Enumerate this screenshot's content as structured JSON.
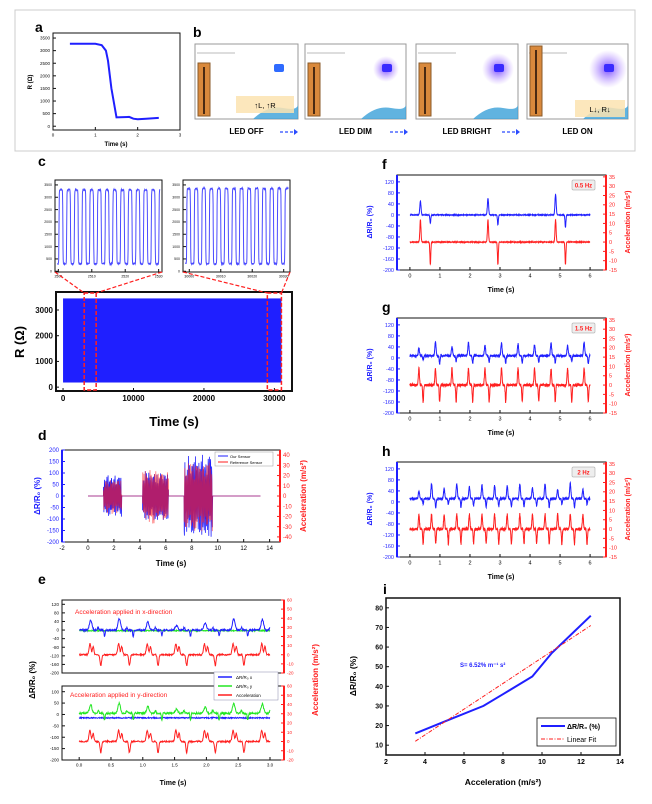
{
  "panel_labels": {
    "a": "a",
    "b": "b",
    "c": "c",
    "d": "d",
    "e": "e",
    "f": "f",
    "g": "g",
    "h": "h",
    "i": "i"
  },
  "panel_b": {
    "stages": [
      "LED OFF",
      "LED DIM",
      "LED BRIGHT",
      "LED ON"
    ],
    "annotation_off": "↑L, ↑R",
    "annotation_on": "L↓, R↓",
    "arrow_color": "#2a4bff"
  },
  "colors": {
    "blue": "#1f1fff",
    "red": "#ff1f1f",
    "green": "#22e622"
  },
  "chart_data": [
    {
      "panel": "a",
      "type": "line",
      "xlabel": "Time (s)",
      "ylabel": "R (Ω)",
      "xlim": [
        0,
        3
      ],
      "ylim": [
        -150,
        3700
      ],
      "xticks": [
        0,
        1,
        2,
        3
      ],
      "yticks": [
        0,
        500,
        1000,
        1500,
        2000,
        2500,
        3000,
        3500
      ],
      "x": [
        0.4,
        1.0,
        1.15,
        1.25,
        1.3,
        1.38,
        1.5,
        1.8,
        1.9,
        2.0,
        2.2,
        2.5
      ],
      "y": [
        3270,
        3270,
        3220,
        3000,
        2600,
        1500,
        350,
        370,
        300,
        280,
        300,
        330
      ]
    },
    {
      "panel": "c-inset-1",
      "type": "line",
      "xlim": [
        2499,
        2531
      ],
      "ylim": [
        -30,
        3700
      ],
      "xticks": [
        2500,
        2510,
        2520,
        2530
      ],
      "yticks": [
        0,
        500,
        1000,
        1500,
        2000,
        2500,
        3000,
        3500
      ],
      "high": 3300,
      "low": 300,
      "cycle_period_s": 2.3
    },
    {
      "panel": "c-inset-2",
      "type": "line",
      "xlim": [
        29998,
        30032
      ],
      "ylim": [
        -30,
        3700
      ],
      "xticks": [
        30000,
        30010,
        30020,
        30030
      ],
      "yticks": [
        0,
        500,
        1000,
        1500,
        2000,
        2500,
        3000,
        3500
      ],
      "high": 3350,
      "low": 300,
      "cycle_period_s": 2.4
    },
    {
      "panel": "c",
      "type": "area",
      "xlabel": "Time (s)",
      "ylabel": "R (Ω)",
      "xlim": [
        -1000,
        32500
      ],
      "ylim": [
        -150,
        3700
      ],
      "xticks": [
        0,
        10000,
        20000,
        30000
      ],
      "yticks": [
        0,
        1000,
        2000,
        3000
      ],
      "x_range": [
        0,
        31000
      ],
      "band": [
        180,
        3450
      ],
      "zoom_regions": [
        [
          3000,
          4700
        ],
        [
          29000,
          31000
        ]
      ]
    },
    {
      "panel": "d",
      "type": "line",
      "xlabel": "Time (s)",
      "ylabel": "ΔR/R₀ (%)",
      "y2label": "Acceleration (m/s²)",
      "xlim": [
        -2,
        14.8
      ],
      "ylim": [
        -200,
        200
      ],
      "y2lim": [
        -45,
        45
      ],
      "xticks": [
        -2,
        0,
        2,
        4,
        6,
        8,
        10,
        12,
        14
      ],
      "yticks": [
        -200,
        -150,
        -100,
        -50,
        0,
        50,
        100,
        150,
        200
      ],
      "y2ticks": [
        -40,
        -30,
        -20,
        -10,
        0,
        10,
        20,
        30,
        40
      ],
      "legend": [
        "Our Sensor",
        "Reference Sensor"
      ],
      "legend_position": "top-right",
      "baseline_range": [
        0,
        13.3
      ],
      "bursts": [
        {
          "t": [
            1.2,
            2.6
          ],
          "amp": 95,
          "acc_amp": 18
        },
        {
          "t": [
            4.2,
            6.2
          ],
          "amp": 110,
          "acc_amp": 27
        },
        {
          "t": [
            7.4,
            9.6
          ],
          "amp": 180,
          "acc_amp": 35
        }
      ]
    },
    {
      "panel": "e",
      "type": "line",
      "xlabel": "Time (s)",
      "ylabel": "ΔR/R₀ (%)",
      "y2label": "Acceleration (m/s²)",
      "xlim": [
        -0.27,
        3.22
      ],
      "xticks": [
        "0.0",
        "0.5",
        "1.0",
        "1.5",
        "2.0",
        "2.5",
        "3.0"
      ],
      "legend": [
        "ΔR/R₀ x",
        "ΔR/R₀ y",
        "Acceleration"
      ],
      "subplots": [
        {
          "title": "Acceleration applied in x-direction",
          "ylim": [
            -200,
            140
          ],
          "yticks": [
            120,
            80,
            40,
            0,
            -40,
            -80,
            -120,
            -160,
            -200
          ],
          "y2lim": [
            -20,
            60
          ],
          "y2ticks": [
            60,
            50,
            40,
            30,
            20,
            10,
            0,
            -10,
            -20
          ],
          "active": "x",
          "pulse_period_s": 0.45,
          "peak": 55
        },
        {
          "title": "Acceleration applied in y-direction",
          "ylim": [
            -200,
            125
          ],
          "yticks": [
            100,
            50,
            0,
            -50,
            -100,
            -150,
            -200
          ],
          "y2lim": [
            -20,
            60
          ],
          "y2ticks": [
            60,
            50,
            40,
            30,
            20,
            10,
            0,
            -10,
            -20
          ],
          "active": "y",
          "pulse_period_s": 0.45,
          "peak": 45
        }
      ]
    },
    {
      "panel": "f",
      "type": "line",
      "badge": "0.5 Hz",
      "xlabel": "Time (s)",
      "ylabel": "ΔR/R₀ (%)",
      "y2label": "Acceleration (m/s²)",
      "xlim": [
        -0.43,
        6.53
      ],
      "ylim": [
        -200,
        145
      ],
      "y2lim": [
        -15,
        36
      ],
      "xticks": [
        0,
        1,
        2,
        3,
        4,
        5,
        6
      ],
      "yticks": [
        120,
        80,
        40,
        0,
        -40,
        -80,
        -120,
        -160,
        -200
      ],
      "y2ticks": [
        35,
        30,
        25,
        20,
        15,
        10,
        5,
        0,
        -5,
        -10,
        -15
      ],
      "pulse_times_s": [
        0.35,
        2.6,
        4.85
      ],
      "peaks": [
        50,
        60,
        75
      ],
      "acc_peak": 12,
      "x_range": [
        0,
        6
      ]
    },
    {
      "panel": "g",
      "type": "line",
      "badge": "1.5 Hz",
      "xlabel": "Time (s)",
      "ylabel": "ΔR/R₀ (%)",
      "y2label": "Acceleration (m/s²)",
      "xlim": [
        -0.43,
        6.53
      ],
      "ylim": [
        -200,
        145
      ],
      "y2lim": [
        -15,
        36
      ],
      "xticks": [
        0,
        1,
        2,
        3,
        4,
        5,
        6
      ],
      "yticks": [
        120,
        80,
        40,
        0,
        -40,
        -80,
        -120,
        -160,
        -200
      ],
      "y2ticks": [
        35,
        30,
        25,
        20,
        15,
        10,
        5,
        0,
        -5,
        -10,
        -15
      ],
      "pulse_period_s": 0.55,
      "peak": 45,
      "acc_peak": 9,
      "x_range": [
        0,
        6
      ]
    },
    {
      "panel": "h",
      "type": "line",
      "badge": "2 Hz",
      "xlabel": "Time (s)",
      "ylabel": "ΔR/R₀ (%)",
      "y2label": "Acceleration (m/s²)",
      "xlim": [
        -0.43,
        6.53
      ],
      "ylim": [
        -200,
        145
      ],
      "y2lim": [
        -15,
        36
      ],
      "xticks": [
        0,
        1,
        2,
        3,
        4,
        5,
        6
      ],
      "yticks": [
        120,
        80,
        40,
        0,
        -40,
        -80,
        -120,
        -160,
        -200
      ],
      "y2ticks": [
        35,
        30,
        25,
        20,
        15,
        10,
        5,
        0,
        -5,
        -10,
        -15
      ],
      "pulse_period_s": 0.42,
      "peak": 50,
      "acc_peak": 8,
      "x_range": [
        0,
        6
      ]
    },
    {
      "panel": "i",
      "type": "line",
      "xlabel": "Acceleration (m/s²)",
      "ylabel": "ΔR/R₀ (%)",
      "xlim": [
        2,
        14
      ],
      "ylim": [
        5,
        85
      ],
      "xticks": [
        2,
        4,
        6,
        8,
        10,
        12,
        14
      ],
      "yticks": [
        10,
        20,
        30,
        40,
        50,
        60,
        70,
        80
      ],
      "annotation": "S= 6.52% m⁻¹ s²",
      "legend": [
        "ΔR/R₀ (%)",
        "Linear Fit"
      ],
      "legend_position": "bottom-right",
      "series": [
        {
          "name": "ΔR/R₀ (%)",
          "x": [
            3.5,
            5,
            7,
            8,
            9.5,
            10.5,
            12.5
          ],
          "y": [
            16,
            22,
            30,
            36,
            45,
            57,
            76
          ]
        },
        {
          "name": "Linear Fit",
          "x": [
            3.5,
            12.5
          ],
          "y": [
            12,
            71
          ]
        }
      ]
    }
  ]
}
